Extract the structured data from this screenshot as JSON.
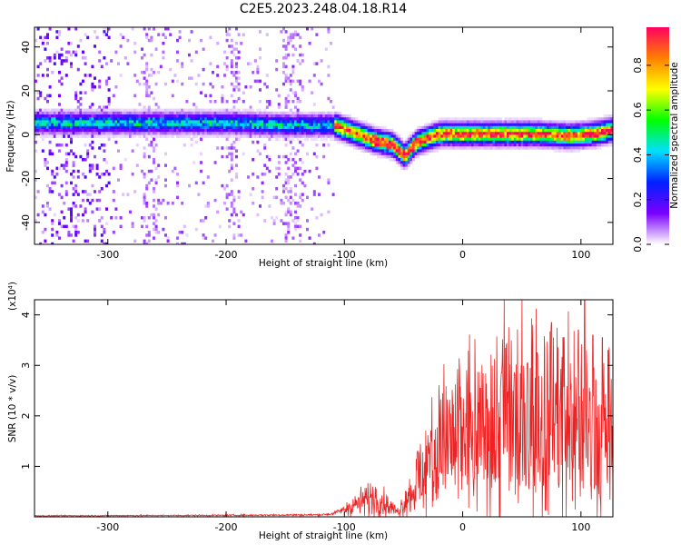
{
  "figure": {
    "title": "C2E5.2023.248.04.18.R14"
  },
  "chart_data": [
    {
      "type": "heatmap",
      "xlabel": "Height of straight line (km)",
      "ylabel": "Frequency (Hz)",
      "xlim": [
        -362,
        127
      ],
      "ylim": [
        -50,
        49
      ],
      "xticks": [
        -300,
        -200,
        -100,
        0,
        100
      ],
      "yticks": [
        -40,
        -20,
        0,
        20,
        40
      ],
      "colorbar": {
        "label": "Normalized spectral amplitude",
        "range": [
          0,
          0.97
        ],
        "ticks": [
          0.0,
          0.2,
          0.4,
          0.6,
          0.8
        ],
        "colormap": [
          "#ffffff",
          "#7a00ff",
          "#0020ff",
          "#00e0ff",
          "#00ff00",
          "#ffff00",
          "#ff8000",
          "#ff0060"
        ]
      },
      "ridge": [
        {
          "x": -350,
          "y": 6
        },
        {
          "x": -300,
          "y": 6
        },
        {
          "x": -250,
          "y": 6
        },
        {
          "x": -200,
          "y": 6
        },
        {
          "x": -150,
          "y": 5
        },
        {
          "x": -110,
          "y": 5
        },
        {
          "x": -90,
          "y": 1
        },
        {
          "x": -75,
          "y": -2
        },
        {
          "x": -60,
          "y": -4
        },
        {
          "x": -50,
          "y": -9
        },
        {
          "x": -40,
          "y": -3
        },
        {
          "x": -20,
          "y": 1
        },
        {
          "x": 0,
          "y": 1
        },
        {
          "x": 30,
          "y": 1
        },
        {
          "x": 60,
          "y": 1
        },
        {
          "x": 90,
          "y": 0
        },
        {
          "x": 110,
          "y": 1
        },
        {
          "x": 127,
          "y": 3
        }
      ],
      "grid": false
    },
    {
      "type": "line",
      "xlabel": "Height of straight line (km)",
      "ylabel": "SNR (10 * v/v)",
      "yscale_label": "(x10⁴)",
      "xlim": [
        -362,
        127
      ],
      "ylim": [
        0,
        4.3
      ],
      "xticks": [
        -300,
        -200,
        -100,
        0,
        100
      ],
      "yticks": [
        1,
        2,
        3,
        4
      ],
      "series_color": "#ee2222",
      "envelope": [
        {
          "x": -362,
          "y": 0.02
        },
        {
          "x": -200,
          "y": 0.03
        },
        {
          "x": -120,
          "y": 0.04
        },
        {
          "x": -110,
          "y": 0.06
        },
        {
          "x": -100,
          "y": 0.15
        },
        {
          "x": -85,
          "y": 0.3
        },
        {
          "x": -75,
          "y": 0.4
        },
        {
          "x": -65,
          "y": 0.25
        },
        {
          "x": -55,
          "y": 0.1
        },
        {
          "x": -48,
          "y": 0.35
        },
        {
          "x": -40,
          "y": 0.6
        },
        {
          "x": -30,
          "y": 1.0
        },
        {
          "x": -20,
          "y": 1.35
        },
        {
          "x": -10,
          "y": 1.55
        },
        {
          "x": 0,
          "y": 1.7
        },
        {
          "x": 20,
          "y": 1.85
        },
        {
          "x": 40,
          "y": 2.0
        },
        {
          "x": 60,
          "y": 2.0
        },
        {
          "x": 80,
          "y": 1.95
        },
        {
          "x": 100,
          "y": 1.9
        },
        {
          "x": 115,
          "y": 1.7
        },
        {
          "x": 127,
          "y": 1.5
        }
      ],
      "peaks": [
        {
          "x": -38,
          "y": 1.3
        },
        {
          "x": -27,
          "y": 1.7
        },
        {
          "x": 15,
          "y": 2.55
        },
        {
          "x": 33,
          "y": 2.85
        },
        {
          "x": 55,
          "y": 3.05
        },
        {
          "x": 63,
          "y": 3.25
        },
        {
          "x": 75,
          "y": 3.85
        },
        {
          "x": 85,
          "y": 3.55
        },
        {
          "x": 98,
          "y": 3.7
        },
        {
          "x": 103,
          "y": 4.3
        },
        {
          "x": 110,
          "y": 3.6
        },
        {
          "x": 118,
          "y": 3.55
        },
        {
          "x": 123,
          "y": 3.3
        }
      ],
      "grid": false
    }
  ]
}
